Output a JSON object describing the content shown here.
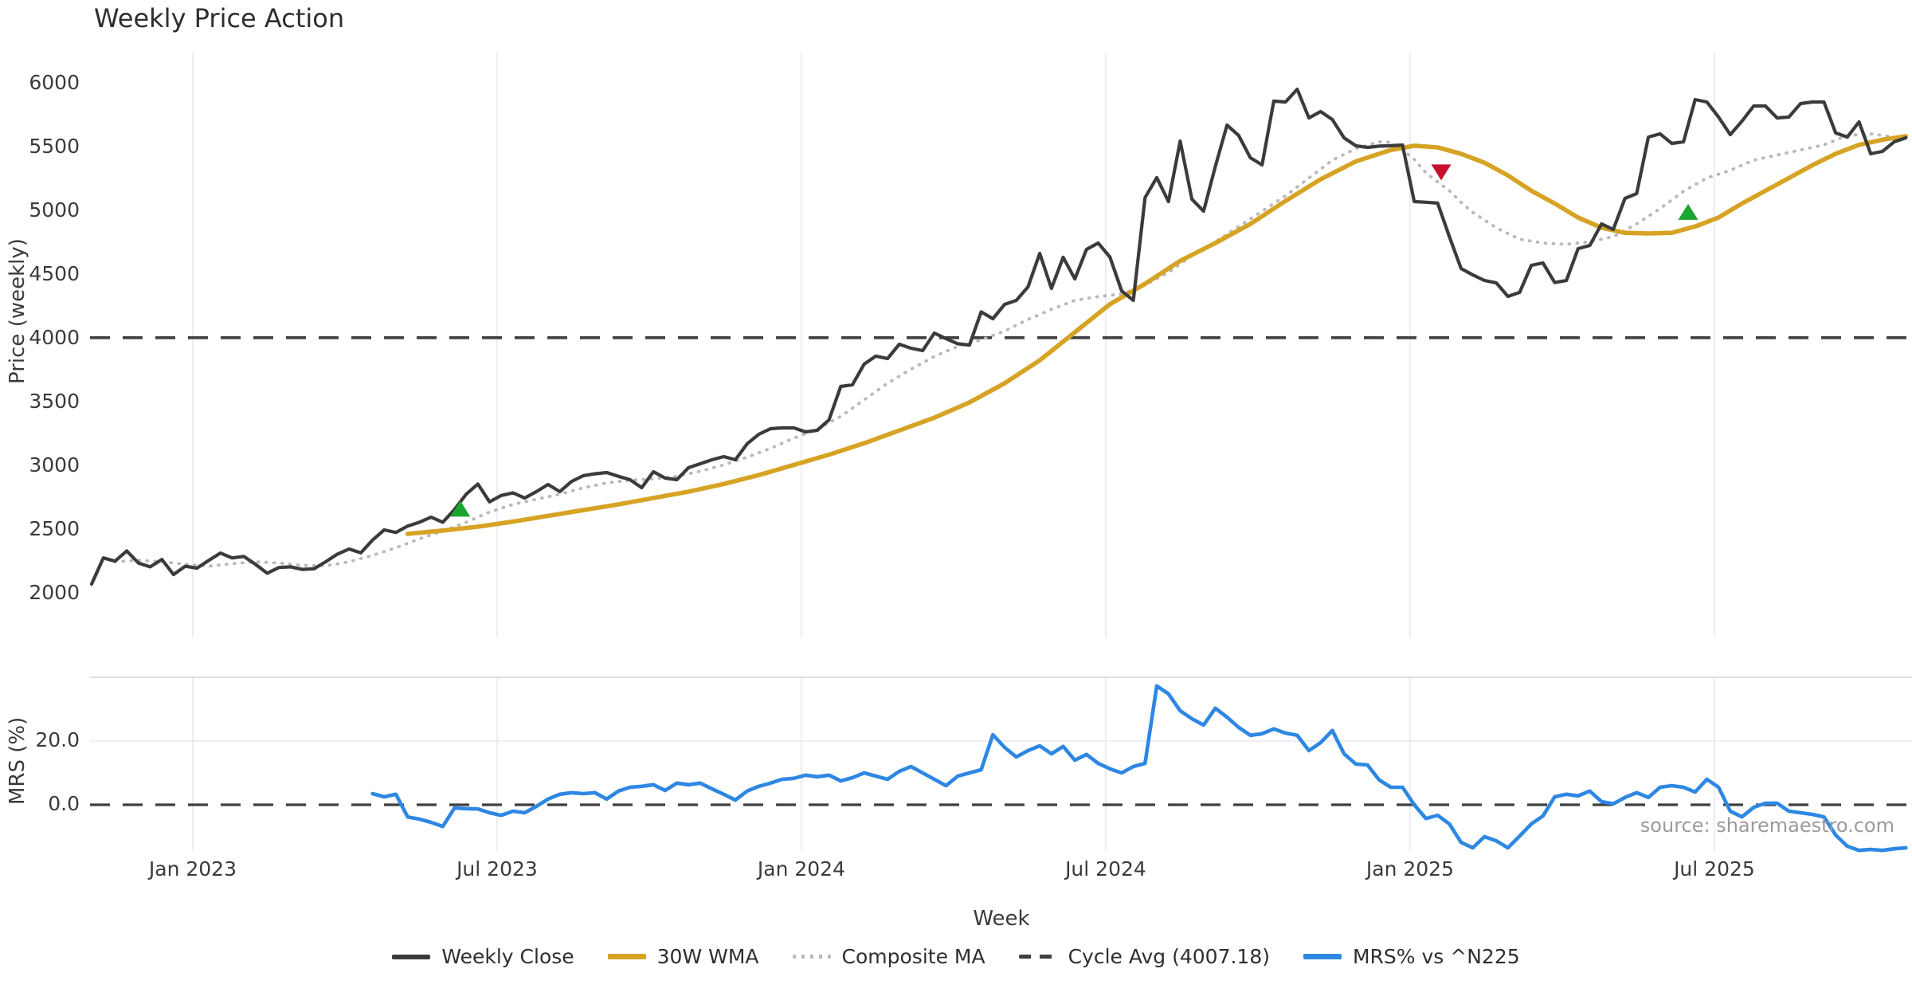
{
  "title": "Weekly Price Action",
  "source_note": "source: sharemaestro.com",
  "legend": {
    "items": [
      {
        "label": "Weekly Close",
        "type": "solid-dark"
      },
      {
        "label": "30W WMA",
        "type": "solid-gold"
      },
      {
        "label": "Composite MA",
        "type": "dotted"
      },
      {
        "label": "Cycle Avg (4007.18)",
        "type": "dashed"
      },
      {
        "label": "MRS% vs ^N225",
        "type": "solid-blue"
      }
    ]
  },
  "chart_data": [
    {
      "type": "line",
      "title": "Weekly Price Action",
      "xlabel": "Week",
      "ylabel": "Price (weekly)",
      "grid": "vertical",
      "x_tick_labels": [
        "Jan 2023",
        "Jul 2023",
        "Jan 2024",
        "Jul 2024",
        "Jan 2025",
        "Jul 2025"
      ],
      "x_tick_weeks": [
        8.64,
        34.64,
        60.64,
        86.64,
        112.64,
        138.64
      ],
      "y_ticks": [
        6000,
        5500,
        5000,
        4500,
        4000,
        3500,
        3000,
        2500,
        2000
      ],
      "ylim": [
        1950,
        6250
      ],
      "cycle_avg": 4007.18,
      "series": [
        {
          "name": "Weekly Close",
          "color": "#3b3b3b",
          "style": "solid",
          "start_week": 0,
          "values": [
            2075,
            2280,
            2255,
            2335,
            2240,
            2210,
            2268,
            2150,
            2215,
            2200,
            2260,
            2318,
            2280,
            2292,
            2230,
            2160,
            2205,
            2210,
            2190,
            2195,
            2250,
            2310,
            2350,
            2320,
            2420,
            2500,
            2480,
            2530,
            2560,
            2600,
            2560,
            2660,
            2780,
            2860,
            2720,
            2770,
            2790,
            2750,
            2800,
            2856,
            2800,
            2880,
            2925,
            2940,
            2950,
            2920,
            2894,
            2831,
            2956,
            2906,
            2894,
            2988,
            3019,
            3050,
            3075,
            3050,
            3175,
            3250,
            3294,
            3300,
            3300,
            3269,
            3281,
            3363,
            3625,
            3638,
            3800,
            3863,
            3844,
            3956,
            3925,
            3906,
            4044,
            4000,
            3960,
            3950,
            4210,
            4156,
            4269,
            4300,
            4406,
            4669,
            4394,
            4638,
            4469,
            4700,
            4750,
            4640,
            4375,
            4300,
            5106,
            5263,
            5075,
            5550,
            5094,
            5000,
            5350,
            5675,
            5594,
            5419,
            5363,
            5863,
            5856,
            5956,
            5731,
            5781,
            5719,
            5575,
            5513,
            5500,
            5510,
            5513,
            5519,
            5075,
            5070,
            5063,
            4800,
            4550,
            4500,
            4456,
            4438,
            4331,
            4363,
            4575,
            4594,
            4440,
            4456,
            4706,
            4731,
            4900,
            4856,
            5100,
            5138,
            5581,
            5606,
            5531,
            5544,
            5875,
            5856,
            5738,
            5600,
            5706,
            5825,
            5825,
            5731,
            5738,
            5844,
            5856,
            5856,
            5613,
            5581,
            5700,
            5450,
            5469,
            5544,
            5575
          ]
        },
        {
          "name": "30W WMA",
          "color": "#d6a324",
          "style": "solid",
          "points": [
            [
              27,
              2469
            ],
            [
              30,
              2495
            ],
            [
              33,
              2525
            ],
            [
              36,
              2565
            ],
            [
              39,
              2610
            ],
            [
              42,
              2655
            ],
            [
              45,
              2700
            ],
            [
              48,
              2750
            ],
            [
              51,
              2800
            ],
            [
              54,
              2860
            ],
            [
              57,
              2930
            ],
            [
              60,
              3010
            ],
            [
              63,
              3090
            ],
            [
              66,
              3180
            ],
            [
              69,
              3280
            ],
            [
              72,
              3380
            ],
            [
              75,
              3500
            ],
            [
              78,
              3650
            ],
            [
              81,
              3830
            ],
            [
              84,
              4050
            ],
            [
              87,
              4270
            ],
            [
              90,
              4430
            ],
            [
              93,
              4610
            ],
            [
              96,
              4750
            ],
            [
              99,
              4900
            ],
            [
              102,
              5080
            ],
            [
              105,
              5250
            ],
            [
              108,
              5390
            ],
            [
              111,
              5480
            ],
            [
              113,
              5513
            ],
            [
              115,
              5500
            ],
            [
              117,
              5450
            ],
            [
              119,
              5380
            ],
            [
              121,
              5280
            ],
            [
              123,
              5160
            ],
            [
              125,
              5060
            ],
            [
              127,
              4950
            ],
            [
              129,
              4870
            ],
            [
              131,
              4830
            ],
            [
              133,
              4825
            ],
            [
              135,
              4830
            ],
            [
              137,
              4880
            ],
            [
              139,
              4950
            ],
            [
              141,
              5060
            ],
            [
              143,
              5160
            ],
            [
              145,
              5260
            ],
            [
              147,
              5360
            ],
            [
              149,
              5450
            ],
            [
              151,
              5520
            ],
            [
              153,
              5560
            ],
            [
              155,
              5588
            ]
          ]
        },
        {
          "name": "Composite MA",
          "color": "#b9b9bd",
          "style": "dotted",
          "points": [
            [
              2,
              2250
            ],
            [
              4,
              2262
            ],
            [
              6,
              2250
            ],
            [
              8,
              2230
            ],
            [
              10,
              2215
            ],
            [
              12,
              2235
            ],
            [
              14,
              2250
            ],
            [
              16,
              2240
            ],
            [
              18,
              2222
            ],
            [
              20,
              2218
            ],
            [
              22,
              2250
            ],
            [
              24,
              2300
            ],
            [
              26,
              2360
            ],
            [
              28,
              2430
            ],
            [
              30,
              2490
            ],
            [
              32,
              2560
            ],
            [
              34,
              2640
            ],
            [
              36,
              2700
            ],
            [
              38,
              2740
            ],
            [
              40,
              2780
            ],
            [
              42,
              2830
            ],
            [
              44,
              2868
            ],
            [
              46,
              2890
            ],
            [
              48,
              2900
            ],
            [
              50,
              2920
            ],
            [
              52,
              2960
            ],
            [
              54,
              3010
            ],
            [
              56,
              3070
            ],
            [
              58,
              3140
            ],
            [
              60,
              3220
            ],
            [
              62,
              3290
            ],
            [
              64,
              3390
            ],
            [
              66,
              3520
            ],
            [
              68,
              3650
            ],
            [
              70,
              3760
            ],
            [
              72,
              3860
            ],
            [
              74,
              3940
            ],
            [
              76,
              3990
            ],
            [
              78,
              4060
            ],
            [
              80,
              4150
            ],
            [
              82,
              4230
            ],
            [
              84,
              4300
            ],
            [
              86,
              4330
            ],
            [
              88,
              4350
            ],
            [
              90,
              4420
            ],
            [
              92,
              4520
            ],
            [
              94,
              4650
            ],
            [
              96,
              4760
            ],
            [
              98,
              4880
            ],
            [
              100,
              5000
            ],
            [
              102,
              5120
            ],
            [
              104,
              5260
            ],
            [
              106,
              5400
            ],
            [
              108,
              5490
            ],
            [
              110,
              5544
            ],
            [
              111,
              5540
            ],
            [
              112,
              5480
            ],
            [
              113,
              5406
            ],
            [
              114,
              5300
            ],
            [
              115,
              5230
            ],
            [
              116,
              5160
            ],
            [
              117,
              5070
            ],
            [
              118,
              4990
            ],
            [
              120,
              4870
            ],
            [
              122,
              4780
            ],
            [
              124,
              4750
            ],
            [
              126,
              4740
            ],
            [
              128,
              4760
            ],
            [
              130,
              4800
            ],
            [
              132,
              4900
            ],
            [
              134,
              5020
            ],
            [
              136,
              5156
            ],
            [
              138,
              5260
            ],
            [
              140,
              5320
            ],
            [
              142,
              5400
            ],
            [
              144,
              5440
            ],
            [
              146,
              5480
            ],
            [
              148,
              5520
            ],
            [
              150,
              5594
            ],
            [
              152,
              5606
            ],
            [
              154,
              5581
            ],
            [
              155,
              5575
            ]
          ]
        },
        {
          "name": "Cycle Avg",
          "color": "#3f3f3f",
          "style": "dashed",
          "value": 4007.18
        }
      ],
      "markers": [
        {
          "type": "buy",
          "week": 31.5,
          "value": 2660,
          "color": "#19a62e"
        },
        {
          "type": "sell",
          "week": 115.3,
          "value": 5310,
          "color": "#c8102e"
        },
        {
          "type": "buy",
          "week": 136.4,
          "value": 4988,
          "color": "#19a62e"
        }
      ]
    },
    {
      "type": "line",
      "ylabel": "MRS (%)",
      "grid": "both",
      "y_tick_labels": [
        "20.0",
        "0.0"
      ],
      "y_tick_values": [
        20,
        0
      ],
      "ylim": [
        -16,
        40
      ],
      "zero_line_dashed": true,
      "series": [
        {
          "name": "MRS% vs ^N225",
          "color": "#2d87e3",
          "style": "solid",
          "start_week": 24,
          "values": [
            3.5,
            2.5,
            3.3,
            -3.8,
            -4.5,
            -5.5,
            -6.8,
            -1.0,
            -1.2,
            -1.3,
            -2.5,
            -3.3,
            -2.0,
            -2.5,
            -0.5,
            1.8,
            3.3,
            3.8,
            3.5,
            3.8,
            1.8,
            4.3,
            5.5,
            5.8,
            6.3,
            4.5,
            6.8,
            6.3,
            6.8,
            5.0,
            3.3,
            1.5,
            4.3,
            5.8,
            6.8,
            8.0,
            8.3,
            9.3,
            8.8,
            9.3,
            7.5,
            8.5,
            10.0,
            9.0,
            8.0,
            10.5,
            12.0,
            10.0,
            8.0,
            6.0,
            9.0,
            10.0,
            11.0,
            22.0,
            18.0,
            15.0,
            17.0,
            18.5,
            16.0,
            18.3,
            14.0,
            15.8,
            13.0,
            11.3,
            10.0,
            12.0,
            13.0,
            37.3,
            34.8,
            29.5,
            27.0,
            25.0,
            30.3,
            27.5,
            24.3,
            21.8,
            22.3,
            23.8,
            22.5,
            21.8,
            17.0,
            19.5,
            23.3,
            16.0,
            12.8,
            12.5,
            7.8,
            5.5,
            5.5,
            0.0,
            -4.3,
            -3.3,
            -6.0,
            -11.8,
            -13.5,
            -10.0,
            -11.3,
            -13.5,
            -9.8,
            -6.0,
            -3.5,
            2.5,
            3.3,
            2.8,
            4.3,
            1.0,
            0.3,
            2.3,
            3.8,
            2.3,
            5.5,
            6.0,
            5.5,
            4.0,
            8.0,
            5.5,
            -2.0,
            -3.8,
            -0.8,
            0.5,
            0.5,
            -2.0,
            -2.5,
            -3.0,
            -3.8,
            -9.5,
            -13.0,
            -14.3,
            -14.0,
            -14.3,
            -13.8,
            -13.5
          ]
        }
      ]
    }
  ],
  "colors": {
    "grid": "#e9e9f0",
    "spine": "#d9d9e0",
    "accent_gold": "#d6a324",
    "accent_blue": "#2d87e3",
    "buy_green": "#19a62e",
    "sell_red": "#c8102e"
  }
}
